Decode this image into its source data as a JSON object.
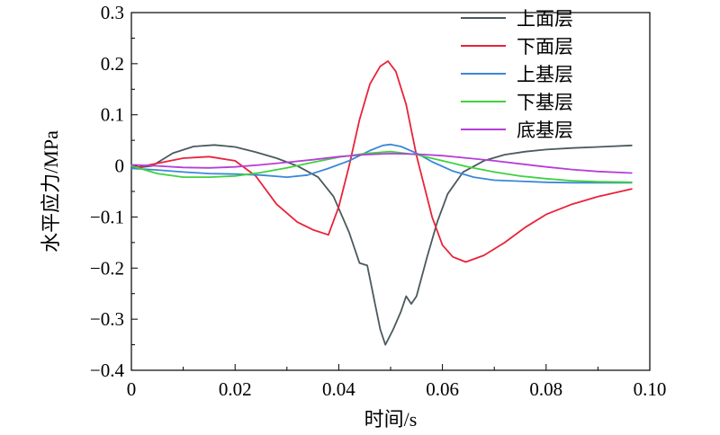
{
  "chart_data": {
    "type": "line",
    "xlabel": "时间/s",
    "ylabel": "水平应力/MPa",
    "xlim": [
      0,
      0.1
    ],
    "ylim": [
      -0.4,
      0.3
    ],
    "xticks": [
      "0",
      "0.02",
      "0.04",
      "0.06",
      "0.08",
      "0.10"
    ],
    "xtick_values": [
      0,
      0.02,
      0.04,
      0.06,
      0.08,
      0.1
    ],
    "yticks": [
      "0.3",
      "0.2",
      "0.1",
      "0",
      "−0.1",
      "−0.2",
      "−0.3",
      "−0.4"
    ],
    "ytick_values": [
      0.3,
      0.2,
      0.1,
      0,
      -0.1,
      -0.2,
      -0.3,
      -0.4
    ],
    "grid": false,
    "legend_position": "top-right",
    "series": [
      {
        "name": "上面层",
        "color": "#4a5a5e",
        "x": [
          0,
          0.004,
          0.008,
          0.012,
          0.016,
          0.02,
          0.024,
          0.028,
          0.032,
          0.036,
          0.039,
          0.042,
          0.044,
          0.0455,
          0.047,
          0.048,
          0.049,
          0.0505,
          0.052,
          0.053,
          0.054,
          0.055,
          0.057,
          0.059,
          0.061,
          0.064,
          0.068,
          0.072,
          0.076,
          0.08,
          0.085,
          0.09,
          0.0965
        ],
        "y": [
          -0.005,
          0.0,
          0.025,
          0.038,
          0.041,
          0.037,
          0.027,
          0.015,
          0.0,
          -0.022,
          -0.06,
          -0.13,
          -0.19,
          -0.195,
          -0.27,
          -0.32,
          -0.35,
          -0.32,
          -0.285,
          -0.255,
          -0.27,
          -0.255,
          -0.18,
          -0.11,
          -0.055,
          -0.012,
          0.01,
          0.022,
          0.028,
          0.032,
          0.035,
          0.037,
          0.04
        ]
      },
      {
        "name": "下面层",
        "color": "#e8233a",
        "x": [
          0,
          0.005,
          0.01,
          0.015,
          0.02,
          0.024,
          0.028,
          0.032,
          0.035,
          0.038,
          0.04,
          0.042,
          0.044,
          0.046,
          0.048,
          0.0495,
          0.051,
          0.053,
          0.055,
          0.058,
          0.06,
          0.062,
          0.0645,
          0.068,
          0.072,
          0.076,
          0.08,
          0.085,
          0.09,
          0.0965
        ],
        "y": [
          -0.005,
          0.005,
          0.015,
          0.018,
          0.01,
          -0.02,
          -0.075,
          -0.11,
          -0.125,
          -0.135,
          -0.08,
          0.0,
          0.09,
          0.16,
          0.195,
          0.205,
          0.185,
          0.12,
          0.02,
          -0.1,
          -0.155,
          -0.178,
          -0.188,
          -0.175,
          -0.15,
          -0.12,
          -0.095,
          -0.075,
          -0.06,
          -0.045
        ]
      },
      {
        "name": "上基层",
        "color": "#3a88d8",
        "x": [
          0,
          0.005,
          0.01,
          0.015,
          0.02,
          0.025,
          0.03,
          0.034,
          0.038,
          0.042,
          0.046,
          0.0485,
          0.05,
          0.052,
          0.055,
          0.058,
          0.062,
          0.066,
          0.07,
          0.075,
          0.08,
          0.085,
          0.09,
          0.0965
        ],
        "y": [
          -0.005,
          -0.008,
          -0.012,
          -0.015,
          -0.016,
          -0.018,
          -0.022,
          -0.018,
          -0.005,
          0.01,
          0.03,
          0.04,
          0.042,
          0.038,
          0.025,
          0.008,
          -0.01,
          -0.022,
          -0.028,
          -0.03,
          -0.032,
          -0.033,
          -0.033,
          -0.033
        ]
      },
      {
        "name": "下基层",
        "color": "#3fd13f",
        "x": [
          0,
          0.005,
          0.01,
          0.015,
          0.02,
          0.025,
          0.03,
          0.035,
          0.04,
          0.045,
          0.05,
          0.055,
          0.06,
          0.065,
          0.07,
          0.075,
          0.08,
          0.085,
          0.09,
          0.0965
        ],
        "y": [
          0.0,
          -0.015,
          -0.022,
          -0.022,
          -0.02,
          -0.013,
          -0.004,
          0.007,
          0.017,
          0.024,
          0.028,
          0.022,
          0.01,
          -0.002,
          -0.012,
          -0.02,
          -0.025,
          -0.029,
          -0.031,
          -0.032
        ]
      },
      {
        "name": "底基层",
        "color": "#b53fd6",
        "x": [
          0,
          0.005,
          0.01,
          0.015,
          0.02,
          0.025,
          0.03,
          0.035,
          0.04,
          0.045,
          0.05,
          0.055,
          0.06,
          0.065,
          0.07,
          0.075,
          0.08,
          0.085,
          0.09,
          0.0965
        ],
        "y": [
          0.002,
          0.0,
          -0.003,
          -0.004,
          -0.002,
          0.002,
          0.007,
          0.012,
          0.018,
          0.022,
          0.024,
          0.023,
          0.02,
          0.015,
          0.01,
          0.004,
          -0.002,
          -0.007,
          -0.011,
          -0.014
        ]
      }
    ]
  }
}
